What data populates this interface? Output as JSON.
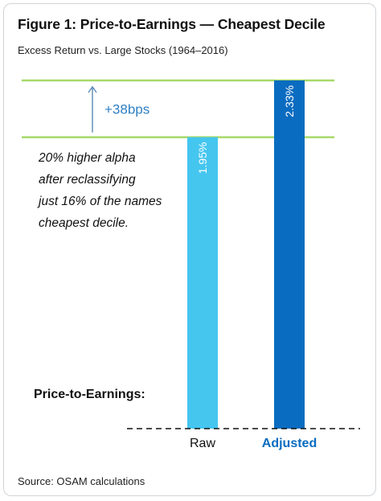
{
  "title": "Figure 1: Price-to-Earnings — Cheapest Decile",
  "subtitle": "Excess Return vs. Large Stocks (1964–2016)",
  "annotation_lines": [
    "20% higher alpha",
    "after reclassifying",
    "just 16% of the names",
    "cheapest decile."
  ],
  "factor_label": "Price-to-Earnings:",
  "source": "Source: OSAM calculations",
  "difference_label": "+38bps",
  "colors": {
    "raw": "#45c6ef",
    "adjusted": "#0a6cc0",
    "guide_line": "#a6d96a",
    "arrow": "#5b89b7",
    "difference_text": "#2f7fc4"
  },
  "chart_data": {
    "type": "bar",
    "categories": [
      "Raw",
      "Adjusted"
    ],
    "values": [
      1.95,
      2.33
    ],
    "value_labels": [
      "1.95%",
      "2.33%"
    ],
    "ylim": [
      0,
      2.33
    ]
  }
}
